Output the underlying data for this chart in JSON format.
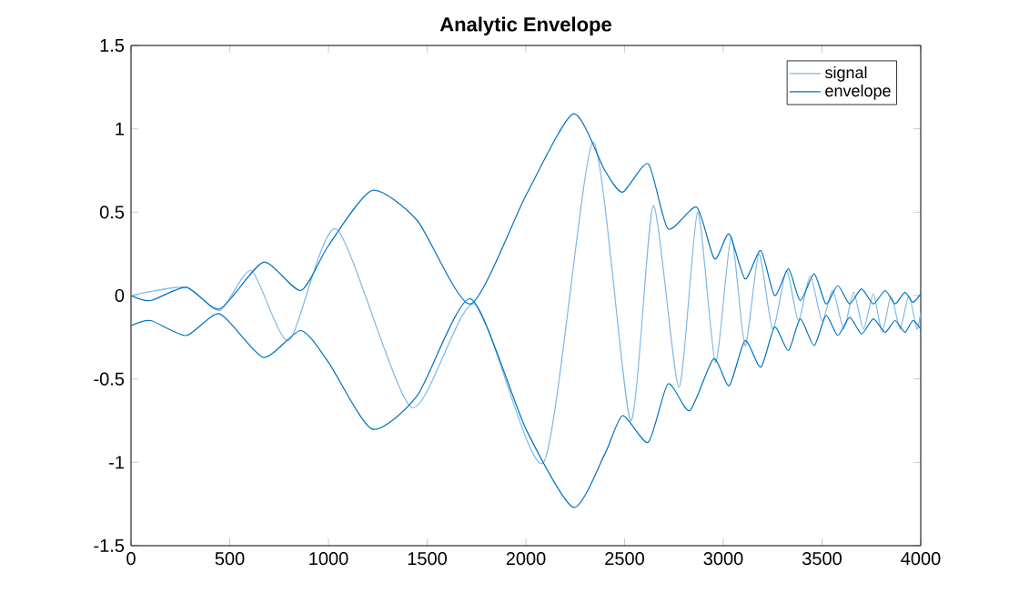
{
  "chart_data": {
    "type": "line",
    "title": "Analytic Envelope",
    "xlim": [
      0,
      4000
    ],
    "ylim": [
      -1.5,
      1.5
    ],
    "xticks": [
      0,
      500,
      1000,
      1500,
      2000,
      2500,
      3000,
      3500,
      4000
    ],
    "yticks": [
      -1.5,
      -1,
      -0.5,
      0,
      0.5,
      1,
      1.5
    ],
    "legend": "top right",
    "series": [
      {
        "name": "signal",
        "color": "#7fb8e8",
        "x": [
          0,
          280,
          450,
          610,
          800,
          1040,
          1420,
          1740,
          2090,
          2340,
          2530,
          2645,
          2775,
          2870,
          2960,
          3040,
          3110,
          3180,
          3250,
          3320,
          3380,
          3440,
          3500,
          3555,
          3610,
          3660,
          3710,
          3760,
          3805,
          3850,
          3895,
          3940,
          3980,
          4000
        ],
        "values": [
          0,
          0.05,
          -0.09,
          0.15,
          -0.27,
          0.4,
          -0.67,
          -0.05,
          -1.0,
          0.92,
          -0.75,
          0.54,
          -0.55,
          0.5,
          -0.4,
          0.35,
          -0.3,
          0.25,
          -0.2,
          0.15,
          -0.15,
          0.12,
          -0.15,
          0.03,
          -0.2,
          0.02,
          -0.2,
          0.01,
          -0.22,
          0,
          -0.2,
          0,
          -0.2,
          -0.1
        ]
      },
      {
        "name": "envelope",
        "color": "#0072bd",
        "x": [
          0,
          100,
          280,
          450,
          670,
          860,
          1000,
          1220,
          1450,
          1720,
          2000,
          2240,
          2400,
          2490,
          2620,
          2720,
          2865,
          2955,
          3030,
          3110,
          3190,
          3260,
          3330,
          3390,
          3460,
          3520,
          3580,
          3640,
          3700,
          3760,
          3820,
          3870,
          3920,
          3960,
          4000
        ],
        "values": [
          0,
          -0.03,
          0.05,
          -0.08,
          0.2,
          0.03,
          0.3,
          0.63,
          0.45,
          -0.05,
          0.6,
          1.09,
          0.75,
          0.62,
          0.79,
          0.4,
          0.53,
          0.22,
          0.37,
          0.1,
          0.27,
          0,
          0.16,
          -0.03,
          0.13,
          -0.05,
          0.06,
          -0.05,
          0.04,
          -0.05,
          0.03,
          -0.05,
          0.02,
          -0.04,
          0.01
        ]
      },
      {
        "color": "#0072bd",
        "x": [
          0,
          100,
          280,
          450,
          670,
          860,
          1000,
          1220,
          1450,
          1720,
          2000,
          2240,
          2400,
          2490,
          2620,
          2720,
          2830,
          2950,
          3030,
          3110,
          3190,
          3260,
          3330,
          3390,
          3460,
          3520,
          3580,
          3640,
          3700,
          3760,
          3820,
          3870,
          3920,
          3960,
          4000
        ],
        "values": [
          -0.18,
          -0.15,
          -0.24,
          -0.11,
          -0.37,
          -0.21,
          -0.4,
          -0.8,
          -0.6,
          -0.02,
          -0.8,
          -1.27,
          -0.95,
          -0.72,
          -0.88,
          -0.53,
          -0.69,
          -0.38,
          -0.54,
          -0.27,
          -0.43,
          -0.19,
          -0.33,
          -0.14,
          -0.3,
          -0.12,
          -0.24,
          -0.13,
          -0.23,
          -0.14,
          -0.22,
          -0.15,
          -0.22,
          -0.15,
          -0.2
        ]
      }
    ]
  }
}
